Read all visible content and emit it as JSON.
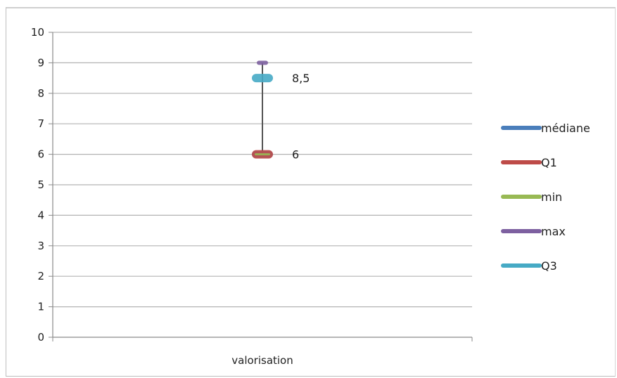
{
  "chart_data": {
    "type": "boxplot",
    "title": "",
    "xlabel": "",
    "ylabel": "",
    "ylim": [
      0,
      10
    ],
    "yticks": [
      "0",
      "1",
      "2",
      "3",
      "4",
      "5",
      "6",
      "7",
      "8",
      "9",
      "10"
    ],
    "categories": [
      "valorisation"
    ],
    "grid": true,
    "legend_position": "right",
    "series": [
      {
        "name": "médiane",
        "values": [
          6
        ],
        "color": "#4a7ebb"
      },
      {
        "name": "Q1",
        "values": [
          6
        ],
        "color": "#be4b48"
      },
      {
        "name": "min",
        "values": [
          6
        ],
        "color": "#98b954"
      },
      {
        "name": "max",
        "values": [
          9
        ],
        "color": "#7d60a0"
      },
      {
        "name": "Q3",
        "values": [
          8.5
        ],
        "color": "#46aac5"
      }
    ],
    "data_labels": [
      {
        "series": "Q3",
        "text": "8,5"
      },
      {
        "series": "Q1",
        "text": "6"
      }
    ],
    "whisker_color": "#555555",
    "grid_color": "#b3b3b3"
  }
}
